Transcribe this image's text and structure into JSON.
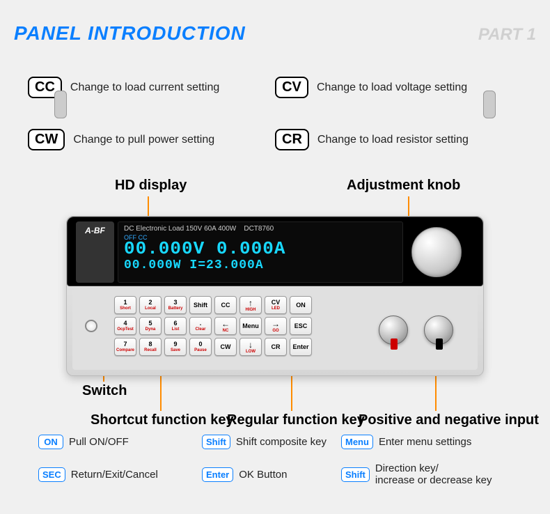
{
  "colors": {
    "accent": "#0a7fff",
    "leader": "#ff8c00",
    "lcd": "#18d8ff"
  },
  "header": {
    "title": "PANEL INTRODUCTION",
    "part": "PART 1"
  },
  "modes": {
    "cc": {
      "code": "CC",
      "desc": "Change to load current setting"
    },
    "cv": {
      "code": "CV",
      "desc": "Change to load voltage setting"
    },
    "cw": {
      "code": "CW",
      "desc": "Change to pull power setting"
    },
    "cr": {
      "code": "CR",
      "desc": "Change to load resistor setting"
    }
  },
  "callouts": {
    "hd": "HD display",
    "knob": "Adjustment knob",
    "switch": "Switch",
    "shortcut": "Shortcut function key",
    "regular": "Regular function key",
    "io": "Positive and negative input"
  },
  "device": {
    "brand": "A-BF",
    "header": "DC Electronic Load 150V 60A 400W",
    "model": "DCT8760",
    "off_label": "OFF CC",
    "main_line": "00.000V  0.000A",
    "sub_line": "00.000W  I=23.000A",
    "keys": [
      [
        {
          "t": "1",
          "s": "Short"
        },
        {
          "t": "2",
          "s": "Local"
        },
        {
          "t": "3",
          "s": "Battery"
        },
        {
          "t": "Shift",
          "s": ""
        },
        {
          "t": "CC",
          "s": ""
        },
        {
          "t": "↑",
          "s": "HIGH"
        },
        {
          "t": "CV",
          "s": "LED"
        },
        {
          "t": "ON",
          "s": ""
        },
        null
      ],
      [
        {
          "t": "4",
          "s": "OcpTest"
        },
        {
          "t": "5",
          "s": "Dyna"
        },
        {
          "t": "6",
          "s": "List"
        },
        {
          "t": ".",
          "s": "Clear"
        },
        {
          "t": "←",
          "s": "NC"
        },
        {
          "t": "Menu",
          "s": ""
        },
        {
          "t": "→",
          "s": "GO"
        },
        {
          "t": "ESC",
          "s": ""
        },
        null
      ],
      [
        {
          "t": "7",
          "s": "Compare"
        },
        {
          "t": "8",
          "s": "Recall"
        },
        {
          "t": "9",
          "s": "Save"
        },
        {
          "t": "0",
          "s": "Pause"
        },
        {
          "t": "CW",
          "s": ""
        },
        {
          "t": "↓",
          "s": "LOW"
        },
        {
          "t": "CR",
          "s": ""
        },
        {
          "t": "Enter",
          "s": ""
        },
        null
      ]
    ]
  },
  "legend": {
    "on": {
      "badge": "ON",
      "text": "Pull ON/OFF"
    },
    "shift": {
      "badge": "Shift",
      "text": "Shift composite key"
    },
    "menu": {
      "badge": "Menu",
      "text": "Enter menu settings"
    },
    "sec": {
      "badge": "SEC",
      "text": "Return/Exit/Cancel"
    },
    "enter": {
      "badge": "Enter",
      "text": "OK Button"
    },
    "shift2": {
      "badge": "Shift",
      "text": "Direction key/\nincrease or decrease key"
    }
  }
}
